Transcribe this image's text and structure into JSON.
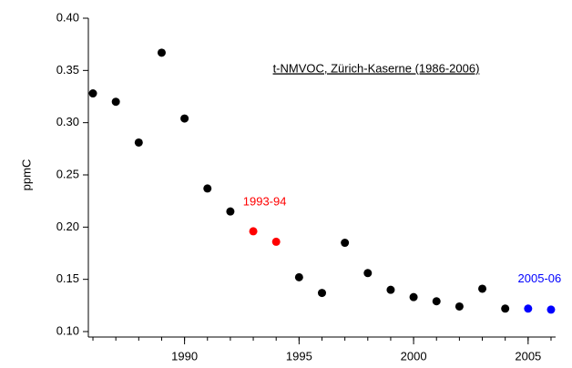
{
  "chart_data": {
    "type": "scatter",
    "annotation": "t-NMVOC, Zürich-Kaserne (1986-2006)",
    "y_label": "ppmC",
    "xlim": [
      1985.8,
      2006.2
    ],
    "xticks": [
      1990,
      1995,
      2000,
      2005
    ],
    "xminorticks": [
      1986,
      1987,
      1988,
      1989,
      1990,
      1991,
      1992,
      1993,
      1994,
      1995,
      1996,
      1997,
      1998,
      1999,
      2000,
      2001,
      2002,
      2003,
      2004,
      2005,
      2006
    ],
    "ylim": [
      0.1,
      0.4
    ],
    "yticks": [
      {
        "value": 0.1,
        "label": "0.10"
      },
      {
        "value": 0.15,
        "label": "0.15"
      },
      {
        "value": 0.2,
        "label": "0.20"
      },
      {
        "value": 0.25,
        "label": "0.25"
      },
      {
        "value": 0.3,
        "label": "0.30"
      },
      {
        "value": 0.35,
        "label": "0.35"
      },
      {
        "value": 0.4,
        "label": "0.40"
      }
    ],
    "series": [
      {
        "color": "#000000",
        "x": [
          1986,
          1987,
          1988,
          1989,
          1990,
          1991,
          1992,
          1995,
          1996,
          1997,
          1998,
          1999,
          2000,
          2001,
          2002,
          2003,
          2004
        ],
        "values": [
          0.328,
          0.32,
          0.281,
          0.367,
          0.304,
          0.237,
          0.215,
          0.152,
          0.137,
          0.185,
          0.156,
          0.14,
          0.133,
          0.129,
          0.124,
          0.141,
          0.122
        ]
      },
      {
        "name": "1993-94",
        "color": "#ff0000",
        "x": [
          1993,
          1994
        ],
        "values": [
          0.196,
          0.186
        ]
      },
      {
        "name": "2005-06",
        "color": "#0000ff",
        "x": [
          2005,
          2006
        ],
        "values": [
          0.122,
          0.121
        ]
      }
    ]
  }
}
